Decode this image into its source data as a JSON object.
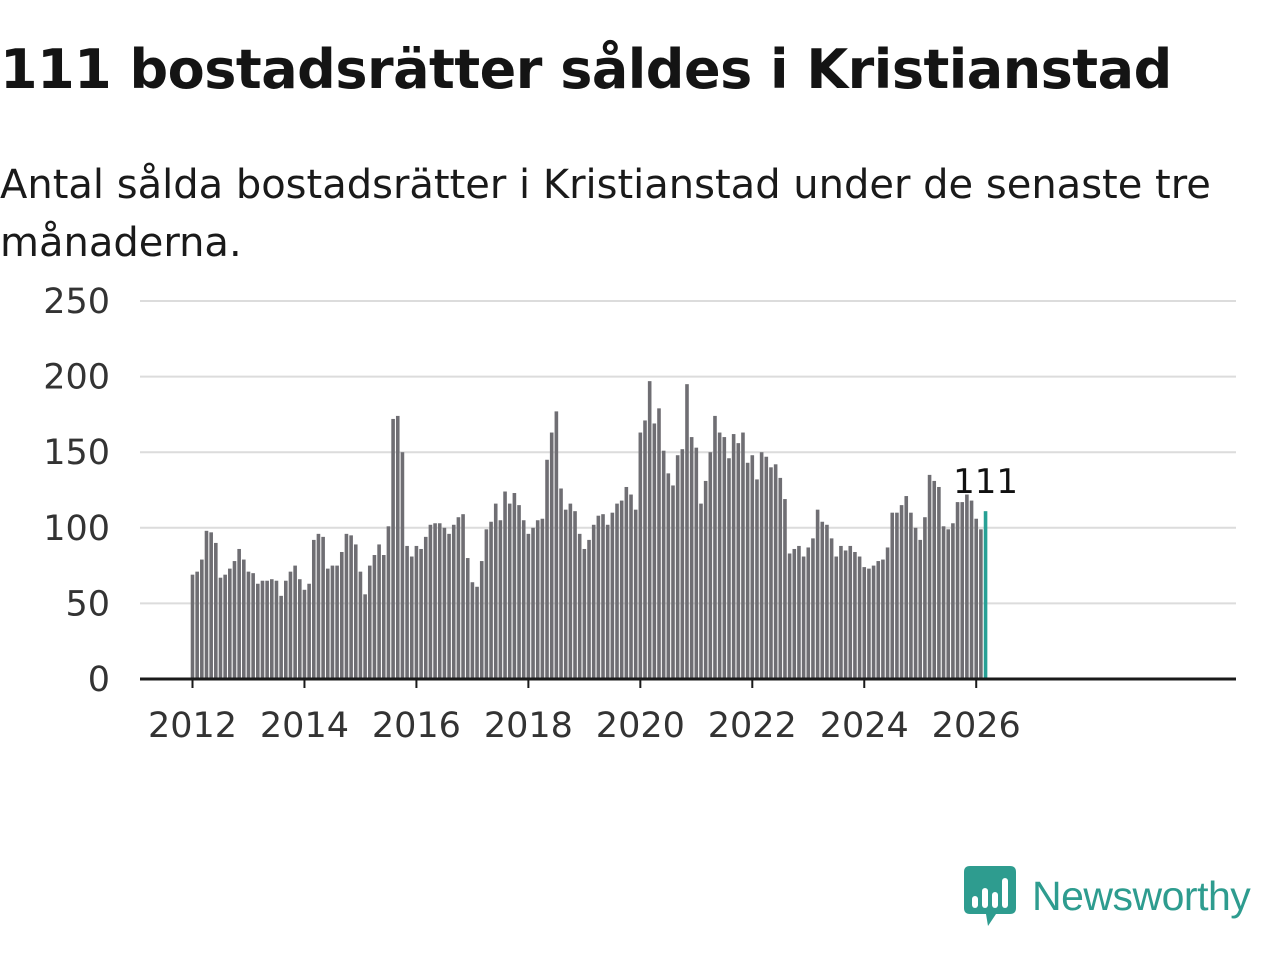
{
  "title": "111 bostadsrätter såldes i Kristianstad",
  "subtitle": "Antal sålda bostadsrätter i Kristianstad under de senaste tre månaderna.",
  "brand": {
    "name": "Newsworthy",
    "icon": "newsworthy-bar-chart-logo-icon"
  },
  "colors": {
    "bar": "#6f6e73",
    "highlight": "#27a095",
    "brand": "#2e9c8f",
    "grid": "#dcdcdc",
    "axis": "#1a1a1a"
  },
  "chart_data": {
    "type": "bar",
    "title": "111 bostadsrätter såldes i Kristianstad",
    "xlabel": "",
    "ylabel": "",
    "ylim": [
      0,
      250
    ],
    "yticks": [
      0,
      50,
      100,
      150,
      200,
      250
    ],
    "xticks": [
      "2012",
      "2014",
      "2016",
      "2018",
      "2020",
      "2022",
      "2024",
      "2026"
    ],
    "start": "2012-01",
    "grid": true,
    "legend": "none",
    "annotation": {
      "text": "111",
      "index": 170
    },
    "values": [
      69,
      71,
      79,
      98,
      97,
      90,
      67,
      69,
      73,
      78,
      86,
      79,
      71,
      70,
      63,
      65,
      65,
      66,
      65,
      55,
      65,
      71,
      75,
      66,
      59,
      63,
      92,
      96,
      94,
      73,
      75,
      75,
      84,
      96,
      95,
      89,
      71,
      56,
      75,
      82,
      89,
      82,
      101,
      172,
      174,
      150,
      88,
      81,
      88,
      86,
      94,
      102,
      103,
      103,
      100,
      96,
      102,
      107,
      109,
      80,
      64,
      61,
      78,
      99,
      104,
      116,
      105,
      124,
      116,
      123,
      115,
      105,
      96,
      100,
      105,
      106,
      145,
      163,
      177,
      126,
      112,
      116,
      111,
      96,
      86,
      92,
      102,
      108,
      109,
      102,
      110,
      116,
      118,
      127,
      122,
      112,
      163,
      171,
      197,
      169,
      179,
      151,
      136,
      128,
      148,
      152,
      195,
      160,
      153,
      116,
      131,
      150,
      174,
      163,
      160,
      146,
      162,
      156,
      163,
      143,
      148,
      132,
      150,
      147,
      140,
      142,
      133,
      119,
      83,
      86,
      88,
      81,
      87,
      93,
      112,
      104,
      102,
      93,
      81,
      88,
      85,
      88,
      84,
      81,
      74,
      73,
      75,
      78,
      79,
      87,
      110,
      110,
      115,
      121,
      110,
      100,
      92,
      107,
      135,
      131,
      127,
      101,
      99,
      103,
      117,
      117,
      122,
      118,
      106,
      99,
      111
    ]
  }
}
